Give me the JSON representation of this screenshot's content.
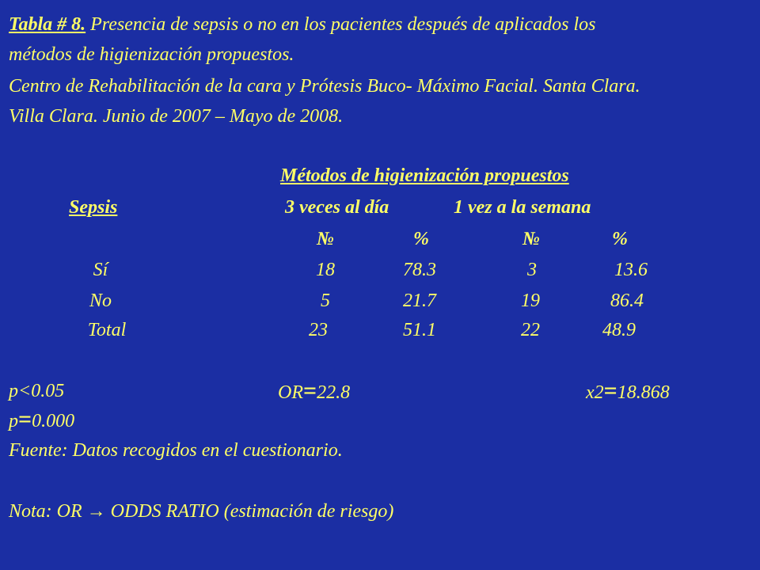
{
  "title": {
    "label": "Tabla  # 8.",
    "line1": " Presencia de sepsis o no en los pacientes después de aplicados los",
    "line2": "métodos de higienización propuestos.",
    "line3": "Centro de Rehabilitación de la cara  y Prótesis Buco- Máximo Facial. Santa Clara.",
    "line4": "Villa Clara. Junio de 2007 – Mayo de 2008."
  },
  "chart_data": {
    "type": "table",
    "group_header": "Métodos de higienización propuestos",
    "row_header": "Sepsis",
    "groups": [
      "3 veces al día",
      "1 vez a la semana"
    ],
    "subcolumns": [
      "№",
      "%",
      "№",
      "%"
    ],
    "rows": [
      {
        "label": "Sí",
        "values": [
          "18",
          "78.3",
          "3",
          "13.6"
        ]
      },
      {
        "label": "No",
        "values": [
          "5",
          "21.7",
          "19",
          "86.4"
        ]
      },
      {
        "label": "Total",
        "values": [
          "23",
          "51.1",
          "22",
          "48.9"
        ]
      }
    ]
  },
  "stats": {
    "p_lt": "p<0.05",
    "or_label": "OR",
    "or_value": "22.8",
    "x2_label": "x2",
    "x2_value": "18.868",
    "p_label": "p",
    "p_value": "0.000",
    "eq_sign": "="
  },
  "footer": {
    "source": "Fuente: Datos recogidos en el cuestionario.",
    "note": "Nota: OR → ODDS RATIO (estimación de riesgo)"
  },
  "colors": {
    "background": "#1b2ea3",
    "text": "#ffff66"
  }
}
